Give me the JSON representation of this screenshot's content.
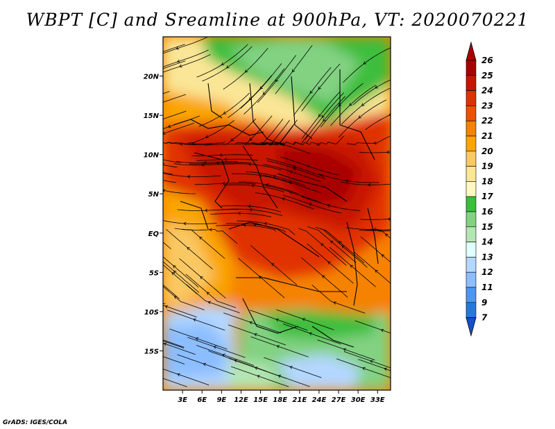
{
  "title": "WBPT [C] and Sreamline at 900hPa, VT: 2020070221",
  "credit": "GrADS: IGES/COLA",
  "map": {
    "lon_range": [
      0,
      35
    ],
    "lat_range": [
      -20,
      25
    ],
    "lon_ticks": [
      "3E",
      "6E",
      "9E",
      "12E",
      "15E",
      "18E",
      "21E",
      "24E",
      "27E",
      "30E",
      "33E"
    ],
    "lat_ticks": [
      "20N",
      "15N",
      "10N",
      "5N",
      "EQ",
      "5S",
      "10S",
      "15S"
    ]
  },
  "colorbar": {
    "labels": [
      "26",
      "25",
      "24",
      "23",
      "22",
      "21",
      "20",
      "19",
      "18",
      "17",
      "16",
      "15",
      "14",
      "13",
      "12",
      "11",
      "9",
      "7"
    ],
    "colors": {
      "c26": "#a80000",
      "c25": "#c81400",
      "c24": "#e03200",
      "c23": "#f05000",
      "c22": "#f58200",
      "c21": "#faa500",
      "c20": "#fac864",
      "c19": "#fae696",
      "c18": "#fff8c0",
      "c17": "#3cbe3c",
      "c16": "#82d282",
      "c15": "#b4e6b4",
      "c14": "#e1ffff",
      "c13": "#b4d7ff",
      "c12": "#8cbeff",
      "c11": "#5096f0",
      "c9": "#2878dc",
      "c7": "#1450c8"
    }
  }
}
